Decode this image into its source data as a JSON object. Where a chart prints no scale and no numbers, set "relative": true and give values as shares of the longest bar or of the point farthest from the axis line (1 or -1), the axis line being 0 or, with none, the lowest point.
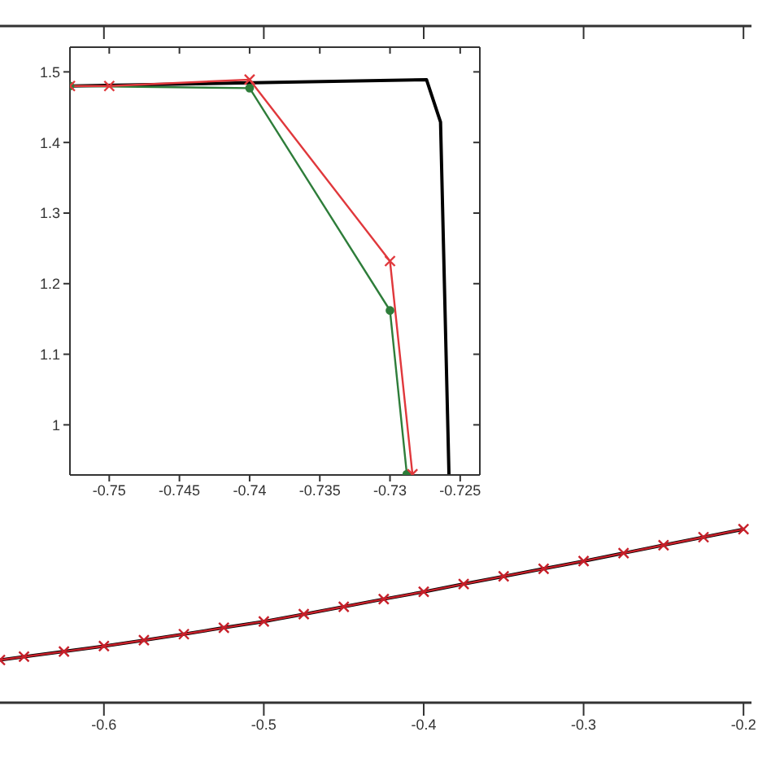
{
  "chart_data": [
    {
      "type": "line",
      "relative": true,
      "x": [
        -0.665,
        -0.65,
        -0.625,
        -0.6,
        -0.575,
        -0.55,
        -0.525,
        -0.5,
        -0.475,
        -0.45,
        -0.425,
        -0.4,
        -0.375,
        -0.35,
        -0.325,
        -0.3,
        -0.275,
        -0.25,
        -0.225,
        -0.2
      ],
      "xlim": [
        -0.665,
        -0.195
      ],
      "xticks": [
        -0.6,
        -0.5,
        -0.4,
        -0.3,
        -0.2
      ],
      "grid": false,
      "legend": false,
      "series": [
        {
          "color": "#000000",
          "marker": "none",
          "values": [
            0.246,
            0.265,
            0.295,
            0.326,
            0.36,
            0.395,
            0.432,
            0.468,
            0.51,
            0.553,
            0.597,
            0.639,
            0.684,
            0.728,
            0.772,
            0.816,
            0.862,
            0.908,
            0.954,
            1.0
          ]
        },
        {
          "color": "#c8202a",
          "marker": "cross",
          "values": [
            0.246,
            0.265,
            0.295,
            0.326,
            0.36,
            0.395,
            0.432,
            0.468,
            0.51,
            0.553,
            0.597,
            0.639,
            0.684,
            0.728,
            0.772,
            0.816,
            0.862,
            0.908,
            0.954,
            1.0
          ]
        }
      ]
    },
    {
      "type": "line",
      "xlim": [
        -0.7528,
        -0.7236
      ],
      "xticks": [
        -0.75,
        -0.745,
        -0.74,
        -0.735,
        -0.73,
        -0.725
      ],
      "ylim": [
        0.929,
        1.535
      ],
      "yticks": [
        1,
        1.1,
        1.2,
        1.3,
        1.4,
        1.5
      ],
      "grid": false,
      "legend": false,
      "series": [
        {
          "color": "#000000",
          "marker": "none",
          "x": [
            -0.7528,
            -0.7274,
            -0.7264,
            -0.7258
          ],
          "values": [
            1.48,
            1.489,
            1.429,
            0.93
          ]
        },
        {
          "color": "#2e7d3a",
          "marker": "circle",
          "x": [
            -0.7528,
            -0.74,
            -0.73,
            -0.7288
          ],
          "values": [
            1.48,
            1.477,
            1.162,
            0.93
          ]
        },
        {
          "color": "#e0383c",
          "marker": "cross",
          "x": [
            -0.7528,
            -0.75,
            -0.74,
            -0.73,
            -0.7284
          ],
          "values": [
            1.48,
            1.48,
            1.489,
            1.232,
            0.93
          ]
        }
      ]
    }
  ]
}
